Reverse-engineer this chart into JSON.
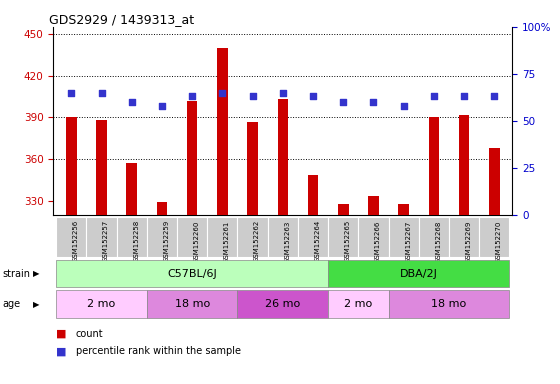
{
  "title": "GDS2929 / 1439313_at",
  "samples": [
    "GSM152256",
    "GSM152257",
    "GSM152258",
    "GSM152259",
    "GSM152260",
    "GSM152261",
    "GSM152262",
    "GSM152263",
    "GSM152264",
    "GSM152265",
    "GSM152266",
    "GSM152267",
    "GSM152268",
    "GSM152269",
    "GSM152270"
  ],
  "counts": [
    390,
    388,
    357,
    329,
    402,
    440,
    387,
    403,
    349,
    328,
    334,
    328,
    390,
    392,
    368
  ],
  "percentile_ranks": [
    65,
    65,
    60,
    58,
    63,
    65,
    63,
    65,
    63,
    60,
    60,
    58,
    63,
    63,
    63
  ],
  "ylim_left": [
    320,
    455
  ],
  "ylim_right": [
    0,
    100
  ],
  "yticks_left": [
    330,
    360,
    390,
    420,
    450
  ],
  "yticks_right": [
    0,
    25,
    50,
    75,
    100
  ],
  "bar_color": "#cc0000",
  "dot_color": "#3333cc",
  "bar_baseline": 320,
  "strain_groups": [
    {
      "label": "C57BL/6J",
      "start": 0,
      "end": 8,
      "color": "#bbffbb"
    },
    {
      "label": "DBA/2J",
      "start": 9,
      "end": 14,
      "color": "#44dd44"
    }
  ],
  "age_groups": [
    {
      "label": "2 mo",
      "start": 0,
      "end": 2,
      "color": "#ffccff"
    },
    {
      "label": "18 mo",
      "start": 3,
      "end": 5,
      "color": "#dd88dd"
    },
    {
      "label": "26 mo",
      "start": 6,
      "end": 8,
      "color": "#cc55cc"
    },
    {
      "label": "2 mo",
      "start": 9,
      "end": 10,
      "color": "#ffccff"
    },
    {
      "label": "18 mo",
      "start": 11,
      "end": 14,
      "color": "#dd88dd"
    }
  ],
  "tick_label_color_left": "#cc0000",
  "tick_label_color_right": "#0000cc",
  "xticklabel_bg": "#cccccc",
  "left_label": "strain",
  "age_label": "age"
}
